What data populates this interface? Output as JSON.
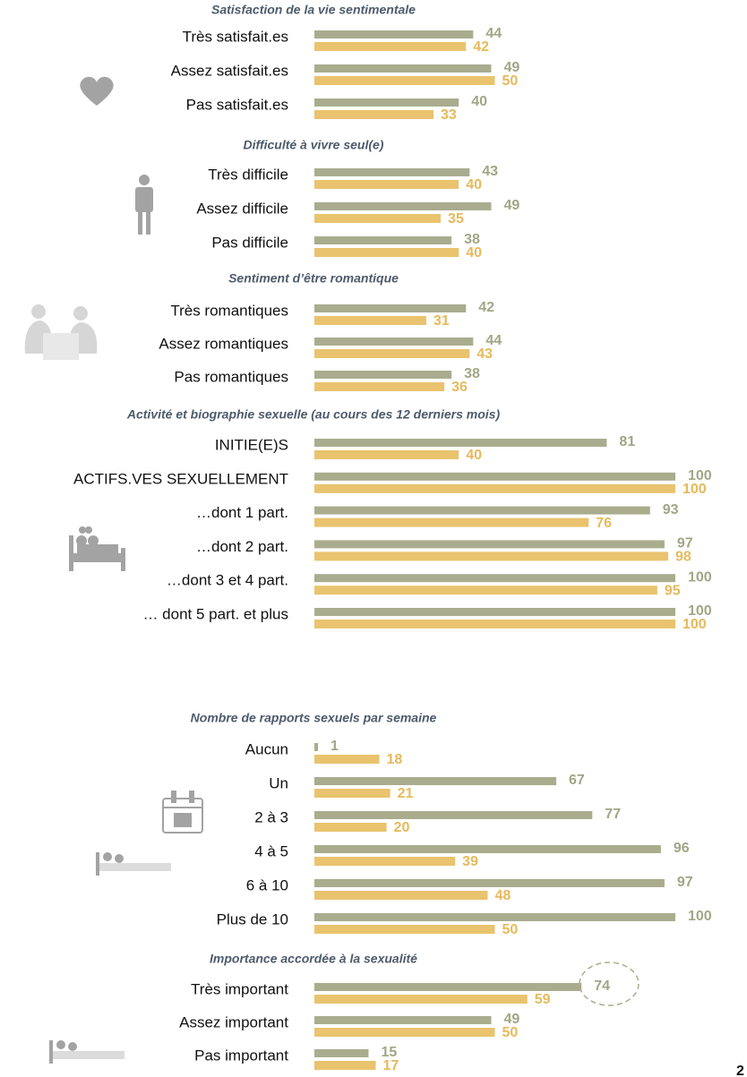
{
  "chart_data": [
    {
      "type": "bar",
      "title": "Satisfaction de la vie sentimentale",
      "categories": [
        "Très satisfait.es",
        "Assez satisfait.es",
        "Pas satisfait.es"
      ],
      "xlim": [
        0,
        100
      ],
      "series": [
        {
          "color": "#a9ad8e",
          "values": [
            44,
            49,
            40
          ]
        },
        {
          "color": "#e9c36e",
          "values": [
            42,
            50,
            33
          ]
        }
      ]
    },
    {
      "type": "bar",
      "title": "Difficulté à vivre seul(e)",
      "categories": [
        "Très difficile",
        "Assez difficile",
        "Pas difficile"
      ],
      "xlim": [
        0,
        100
      ],
      "series": [
        {
          "color": "#a9ad8e",
          "values": [
            43,
            49,
            38
          ]
        },
        {
          "color": "#e9c36e",
          "values": [
            40,
            35,
            40
          ]
        }
      ]
    },
    {
      "type": "bar",
      "title": "Sentiment d’être romantique",
      "categories": [
        "Très romantiques",
        "Assez romantiques",
        "Pas romantiques"
      ],
      "xlim": [
        0,
        100
      ],
      "series": [
        {
          "color": "#a9ad8e",
          "values": [
            42,
            44,
            38
          ]
        },
        {
          "color": "#e9c36e",
          "values": [
            31,
            43,
            36
          ]
        }
      ]
    },
    {
      "type": "bar",
      "title": "Activité et biographie sexuelle (au cours des 12 derniers mois)",
      "categories": [
        "INITIE(E)S",
        "ACTIFS.VES SEXUELLEMENT",
        "…dont 1 part.",
        "…dont 2 part.",
        "…dont 3 et 4 part.",
        "… dont 5 part. et plus"
      ],
      "xlim": [
        0,
        100
      ],
      "series": [
        {
          "color": "#a9ad8e",
          "values": [
            81,
            100,
            93,
            97,
            100,
            100
          ]
        },
        {
          "color": "#e9c36e",
          "values": [
            40,
            100,
            76,
            98,
            95,
            100
          ]
        }
      ]
    },
    {
      "type": "bar",
      "title": "Nombre de rapports sexuels par semaine",
      "categories": [
        "Aucun",
        "Un",
        "2 à 3",
        "4 à 5",
        "6 à 10",
        "Plus de 10"
      ],
      "xlim": [
        0,
        100
      ],
      "series": [
        {
          "color": "#a9ad8e",
          "values": [
            1,
            67,
            77,
            96,
            97,
            100
          ]
        },
        {
          "color": "#e9c36e",
          "values": [
            18,
            21,
            20,
            39,
            48,
            50
          ]
        }
      ]
    },
    {
      "type": "bar",
      "title": "Importance accordée à la sexualité",
      "categories": [
        "Très important",
        "Assez important",
        "Pas important"
      ],
      "xlim": [
        0,
        100
      ],
      "series": [
        {
          "color": "#a9ad8e",
          "values": [
            74,
            49,
            15
          ]
        },
        {
          "color": "#e9c36e",
          "values": [
            59,
            50,
            17
          ]
        }
      ]
    }
  ],
  "page_number": "2"
}
